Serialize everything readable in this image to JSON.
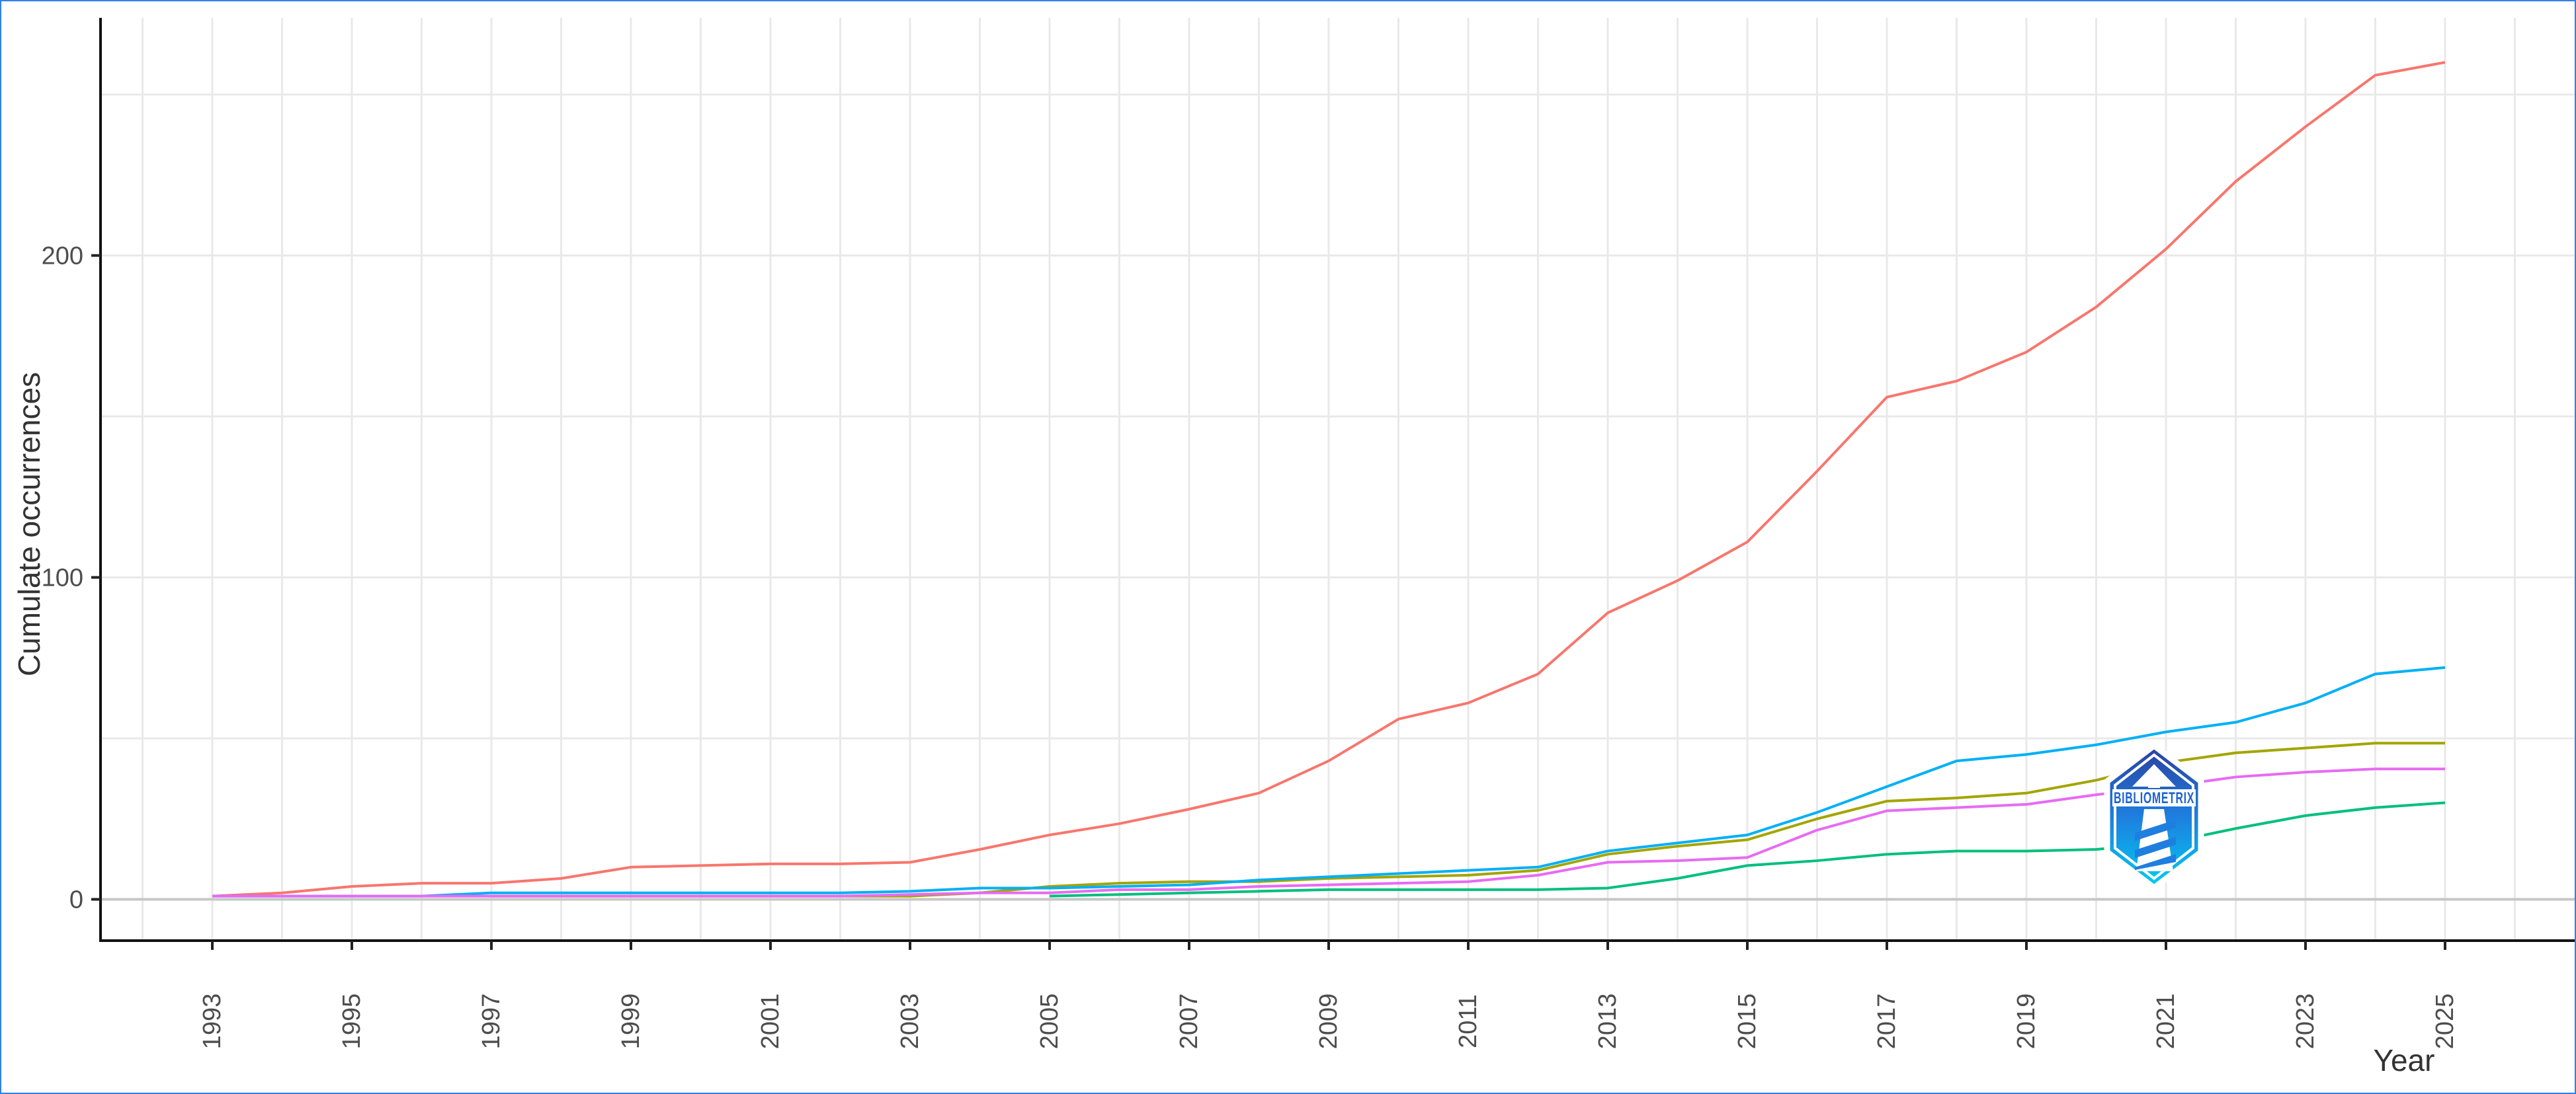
{
  "frame": {
    "border_color": "#2f80ed",
    "background": "#ffffff"
  },
  "chart_data": {
    "type": "line",
    "title": "",
    "xlabel": "Year",
    "ylabel": "Cumulate occurrences",
    "x": [
      1993,
      1994,
      1995,
      1996,
      1997,
      1998,
      1999,
      2000,
      2001,
      2002,
      2003,
      2004,
      2005,
      2006,
      2007,
      2008,
      2009,
      2010,
      2011,
      2012,
      2013,
      2014,
      2015,
      2016,
      2017,
      2018,
      2019,
      2020,
      2021,
      2022,
      2023,
      2024,
      2025
    ],
    "x_tick_years": [
      1993,
      1995,
      1997,
      1999,
      2001,
      2003,
      2005,
      2007,
      2009,
      2011,
      2013,
      2015,
      2017,
      2019,
      2021,
      2023,
      2025
    ],
    "y_ticks": [
      0,
      100,
      200
    ],
    "y_gridlines": [
      0,
      50,
      100,
      150,
      200,
      250
    ],
    "x_gridline_years": [
      1992,
      1993,
      1994,
      1995,
      1996,
      1997,
      1998,
      1999,
      2000,
      2001,
      2002,
      2003,
      2004,
      2005,
      2006,
      2007,
      2008,
      2009,
      2010,
      2011,
      2012,
      2013,
      2014,
      2015,
      2016,
      2017,
      2018,
      2019,
      2020,
      2021,
      2022,
      2023,
      2024,
      2025,
      2026
    ],
    "ylim": [
      0,
      273
    ],
    "grid": "on",
    "legend_position": "none",
    "series": [
      {
        "id": "salmon",
        "color": "#F8766D",
        "values": [
          1,
          2,
          4,
          5,
          5,
          6.5,
          10,
          10.5,
          11,
          11,
          11.5,
          15.5,
          20,
          23.5,
          28,
          33,
          43,
          56,
          61,
          70,
          89,
          99,
          111,
          133,
          156,
          161,
          170,
          184,
          202,
          223,
          240,
          256,
          260
        ]
      },
      {
        "id": "olive",
        "color": "#A3A500",
        "values": [
          null,
          null,
          null,
          null,
          1,
          1,
          1,
          1,
          1,
          1,
          1,
          2,
          4,
          5,
          5.5,
          5.5,
          6.5,
          7,
          7.5,
          9,
          14,
          16.5,
          18.5,
          25,
          30.5,
          31.5,
          33,
          37,
          42.5,
          45.5,
          47,
          48.5,
          48.5
        ]
      },
      {
        "id": "green",
        "color": "#00BF7D",
        "values": [
          null,
          null,
          null,
          null,
          null,
          null,
          null,
          null,
          null,
          null,
          null,
          null,
          1,
          1.5,
          2,
          2.5,
          3,
          3,
          3,
          3,
          3.5,
          6.5,
          10.5,
          12,
          14,
          15,
          15,
          15.5,
          17.5,
          22,
          26,
          28.5,
          30
        ]
      },
      {
        "id": "azure",
        "color": "#00B0F6",
        "values": [
          1,
          1,
          1,
          1,
          2,
          2,
          2,
          2,
          2,
          2,
          2.5,
          3.5,
          3.5,
          4,
          4.5,
          6,
          7,
          8,
          9,
          10,
          15,
          17.5,
          20,
          27,
          35,
          43,
          45,
          48,
          52,
          55,
          61,
          70,
          72
        ]
      },
      {
        "id": "orchid",
        "color": "#E76BF3",
        "values": [
          1,
          1,
          1,
          1,
          1,
          1,
          1,
          1,
          1,
          1,
          1.5,
          2,
          2,
          3,
          3,
          4,
          4.5,
          5,
          5.5,
          7.5,
          11.5,
          12,
          13,
          21.5,
          27.5,
          28.5,
          29.5,
          32.5,
          35,
          38,
          39.5,
          40.5,
          40.5
        ]
      }
    ],
    "watermark": {
      "text": "BIBLIOMETRIX"
    }
  },
  "logo": {
    "text": "BIBLIOMETRIX",
    "gradient_top": "#2b3f9e",
    "gradient_mid": "#1e7fdf",
    "gradient_bottom": "#00cdf2",
    "text_color": "#1c63d2"
  }
}
